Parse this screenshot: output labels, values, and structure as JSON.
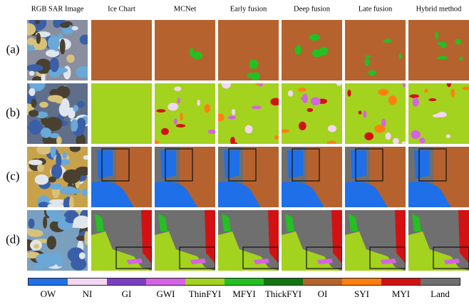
{
  "header": {
    "columns": [
      "RGB SAR Image",
      "Ice Chart",
      "MCNet",
      "Early fusion",
      "Deep fusion",
      "Late fusion",
      "Hybrid method"
    ]
  },
  "rows": [
    "(a)",
    "(b)",
    "(c)",
    "(d)"
  ],
  "legend": {
    "classes": [
      {
        "label": "OW",
        "color": "#1f6fe8"
      },
      {
        "label": "NI",
        "color": "#f3d6f3"
      },
      {
        "label": "GI",
        "color": "#7b3fc4"
      },
      {
        "label": "GWI",
        "color": "#d563e3"
      },
      {
        "label": "ThinFYI",
        "color": "#a3d21f"
      },
      {
        "label": "MFYI",
        "color": "#23c022"
      },
      {
        "label": "ThickFYI",
        "color": "#127512"
      },
      {
        "label": "OI",
        "color": "#b5622e"
      },
      {
        "label": "SYI",
        "color": "#ff7f12"
      },
      {
        "label": "MYI",
        "color": "#d21212"
      },
      {
        "label": "Land",
        "color": "#6f6f6f"
      }
    ]
  }
}
